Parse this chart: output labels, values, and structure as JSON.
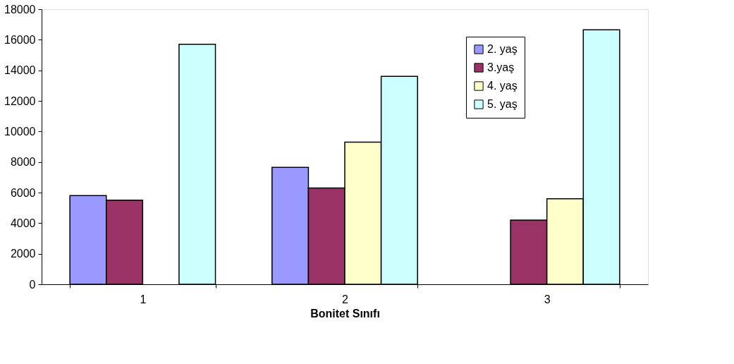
{
  "chart_data": {
    "type": "bar",
    "xlabel": "Bonitet Sınıfı",
    "categories": [
      "1",
      "2",
      "3"
    ],
    "series": [
      {
        "name": "2. yaş",
        "color": "#9999ff",
        "values": [
          5800,
          7650,
          null
        ]
      },
      {
        "name": "3.yaş",
        "color": "#993366",
        "values": [
          5500,
          6300,
          4200
        ]
      },
      {
        "name": "4. yaş",
        "color": "#ffffcc",
        "values": [
          null,
          9300,
          5600
        ]
      },
      {
        "name": "5. yaş",
        "color": "#ccffff",
        "values": [
          15700,
          13600,
          16650
        ]
      }
    ],
    "ylim": [
      0,
      18000
    ],
    "yticks": [
      0,
      2000,
      4000,
      6000,
      8000,
      10000,
      12000,
      14000,
      16000,
      18000
    ],
    "grid": false,
    "legend": "top right"
  }
}
